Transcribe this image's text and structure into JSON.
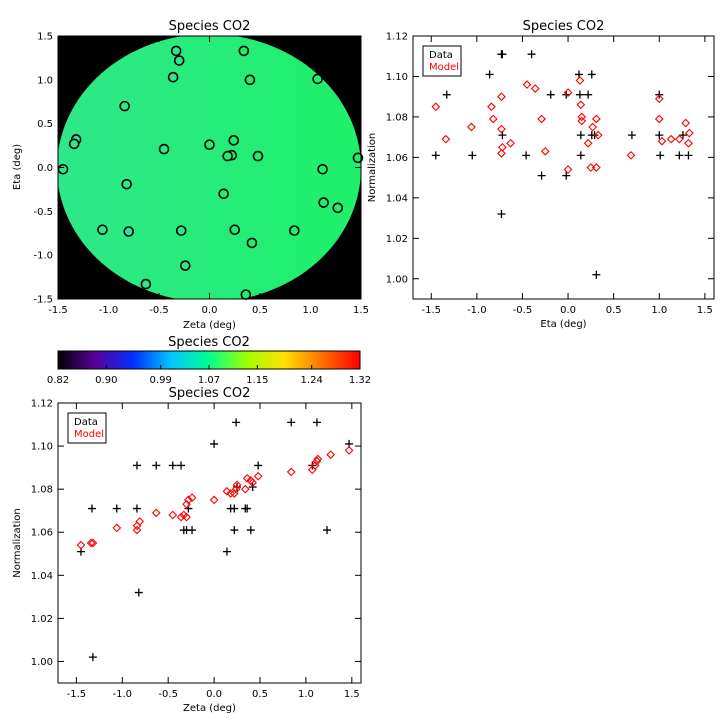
{
  "map": {
    "title": "Species CO2",
    "xlabel": "Zeta (deg)",
    "ylabel": "Eta (deg)",
    "xlim": [
      -1.5,
      1.5
    ],
    "ylim": [
      -1.5,
      1.5
    ],
    "x_ticks": [
      "-1.5",
      "-1.0",
      "-0.5",
      "0.0",
      "0.5",
      "1.0",
      "1.5"
    ],
    "y_ticks": [
      "-1.5",
      "-1.0",
      "-0.5",
      "0.0",
      "0.5",
      "1.0",
      "1.5"
    ],
    "background_color": "#000000",
    "disk_color_left": "#2ee88a",
    "disk_color_right": "#1ef06a",
    "points": [
      {
        "x": 0.34,
        "y": 1.33,
        "c": "#1ef06a"
      },
      {
        "x": -0.33,
        "y": 1.33,
        "c": "#2ee88a"
      },
      {
        "x": -0.3,
        "y": 1.22,
        "c": "#2ee88a"
      },
      {
        "x": -0.36,
        "y": 1.03,
        "c": "#2ee88a"
      },
      {
        "x": 0.4,
        "y": 1.0,
        "c": "#1ef06a"
      },
      {
        "x": 1.07,
        "y": 1.01,
        "c": "#1ef06a"
      },
      {
        "x": -0.84,
        "y": 0.7,
        "c": "#2ee88a"
      },
      {
        "x": -1.32,
        "y": 0.32,
        "c": "#2ee0a8"
      },
      {
        "x": -1.34,
        "y": 0.27,
        "c": "#2ee88a"
      },
      {
        "x": 0.24,
        "y": 0.31,
        "c": "#1ef06a"
      },
      {
        "x": 0.0,
        "y": 0.26,
        "c": "#1ef06a"
      },
      {
        "x": -0.45,
        "y": 0.21,
        "c": "#2ee88a"
      },
      {
        "x": 0.22,
        "y": 0.14,
        "c": "#1ef06a"
      },
      {
        "x": 0.18,
        "y": 0.13,
        "c": "#1ef06a"
      },
      {
        "x": 0.48,
        "y": 0.13,
        "c": "#1ef06a"
      },
      {
        "x": 1.47,
        "y": 0.11,
        "c": "#1ef06a"
      },
      {
        "x": -1.45,
        "y": -0.02,
        "c": "#2ee88a"
      },
      {
        "x": 1.12,
        "y": -0.02,
        "c": "#1ef06a"
      },
      {
        "x": -0.82,
        "y": -0.19,
        "c": "#2ee88a"
      },
      {
        "x": 0.14,
        "y": -0.3,
        "c": "#1ef06a"
      },
      {
        "x": 1.13,
        "y": -0.4,
        "c": "#1ef06a"
      },
      {
        "x": 1.27,
        "y": -0.46,
        "c": "#1ef06a"
      },
      {
        "x": -1.06,
        "y": -0.71,
        "c": "#2ee88a"
      },
      {
        "x": -0.8,
        "y": -0.73,
        "c": "#2ee0a8"
      },
      {
        "x": -0.28,
        "y": -0.72,
        "c": "#2ee88a"
      },
      {
        "x": 0.25,
        "y": -0.71,
        "c": "#1ef06a"
      },
      {
        "x": 0.84,
        "y": -0.72,
        "c": "#1ef06a"
      },
      {
        "x": 0.42,
        "y": -0.86,
        "c": "#1ef06a"
      },
      {
        "x": -0.24,
        "y": -1.12,
        "c": "#2ee88a"
      },
      {
        "x": -0.63,
        "y": -1.33,
        "c": "#2ee88a"
      },
      {
        "x": 0.36,
        "y": -1.45,
        "c": "#1ef06a"
      }
    ]
  },
  "colorbar": {
    "title": "Species CO2",
    "min": 0.82,
    "max": 1.32,
    "tick_labels": [
      "0.82",
      "0.90",
      "0.99",
      "1.07",
      "1.15",
      "1.24",
      "1.32"
    ],
    "colors": [
      "#000000",
      "#5a00a0",
      "#0030ff",
      "#00c8ff",
      "#00ff90",
      "#a0ff00",
      "#ffe000",
      "#ff7000",
      "#ff0000"
    ]
  },
  "chart_data": [
    {
      "type": "scatter",
      "title": "Species CO2",
      "xlabel": "Eta (deg)",
      "ylabel": "Normalization",
      "xlim": [
        -1.7,
        1.6
      ],
      "ylim": [
        0.99,
        1.12
      ],
      "x_ticks": [
        "-1.5",
        "-1.0",
        "-0.5",
        "0.0",
        "0.5",
        "1.0",
        "1.5"
      ],
      "y_ticks": [
        "1.00",
        "1.02",
        "1.04",
        "1.06",
        "1.08",
        "1.10",
        "1.12"
      ],
      "legend": {
        "position": "top-left",
        "entries": [
          {
            "label": "Data",
            "color": "#000000"
          },
          {
            "label": "Model",
            "color": "#ff0000"
          }
        ]
      },
      "series": [
        {
          "name": "Data",
          "marker": "plus",
          "color": "#000000",
          "points": [
            [
              -1.45,
              1.061
            ],
            [
              -1.33,
              1.091
            ],
            [
              -1.05,
              1.061
            ],
            [
              -0.86,
              1.101
            ],
            [
              -0.73,
              1.111
            ],
            [
              -0.72,
              1.111
            ],
            [
              -0.72,
              1.071
            ],
            [
              -0.73,
              1.032
            ],
            [
              -0.46,
              1.061
            ],
            [
              -0.4,
              1.111
            ],
            [
              -0.29,
              1.051
            ],
            [
              -0.19,
              1.091
            ],
            [
              -0.02,
              1.091
            ],
            [
              -0.02,
              1.051
            ],
            [
              0.12,
              1.101
            ],
            [
              0.14,
              1.071
            ],
            [
              0.13,
              1.091
            ],
            [
              0.14,
              1.061
            ],
            [
              0.22,
              1.091
            ],
            [
              0.26,
              1.101
            ],
            [
              0.26,
              1.071
            ],
            [
              0.29,
              1.071
            ],
            [
              0.31,
              1.002
            ],
            [
              0.7,
              1.071
            ],
            [
              1.0,
              1.091
            ],
            [
              1.01,
              1.061
            ],
            [
              1.0,
              1.071
            ],
            [
              1.22,
              1.061
            ],
            [
              1.26,
              1.071
            ],
            [
              1.32,
              1.061
            ]
          ]
        },
        {
          "name": "Model",
          "marker": "diamond",
          "color": "#ff0000",
          "points": [
            [
              -1.45,
              1.085
            ],
            [
              -1.34,
              1.069
            ],
            [
              -1.06,
              1.075
            ],
            [
              -0.84,
              1.085
            ],
            [
              -0.82,
              1.079
            ],
            [
              -0.73,
              1.09
            ],
            [
              -0.73,
              1.074
            ],
            [
              -0.72,
              1.065
            ],
            [
              -0.73,
              1.062
            ],
            [
              -0.63,
              1.067
            ],
            [
              -0.45,
              1.096
            ],
            [
              -0.36,
              1.094
            ],
            [
              -0.29,
              1.079
            ],
            [
              -0.25,
              1.063
            ],
            [
              0.0,
              1.092
            ],
            [
              0.0,
              1.054
            ],
            [
              0.13,
              1.098
            ],
            [
              0.14,
              1.086
            ],
            [
              0.15,
              1.08
            ],
            [
              0.15,
              1.078
            ],
            [
              0.22,
              1.067
            ],
            [
              0.25,
              1.055
            ],
            [
              0.27,
              1.075
            ],
            [
              0.31,
              1.079
            ],
            [
              0.31,
              1.055
            ],
            [
              0.33,
              1.071
            ],
            [
              0.69,
              1.061
            ],
            [
              1.0,
              1.089
            ],
            [
              1.0,
              1.079
            ],
            [
              1.03,
              1.068
            ],
            [
              1.13,
              1.069
            ],
            [
              1.22,
              1.069
            ],
            [
              1.29,
              1.077
            ],
            [
              1.32,
              1.067
            ],
            [
              1.33,
              1.072
            ]
          ]
        }
      ]
    },
    {
      "type": "scatter",
      "title": "Species CO2",
      "xlabel": "Zeta (deg)",
      "ylabel": "Normalization",
      "xlim": [
        -1.7,
        1.6
      ],
      "ylim": [
        0.99,
        1.12
      ],
      "x_ticks": [
        "-1.5",
        "-1.0",
        "-0.5",
        "0.0",
        "0.5",
        "1.0",
        "1.5"
      ],
      "y_ticks": [
        "1.00",
        "1.02",
        "1.04",
        "1.06",
        "1.08",
        "1.10",
        "1.12"
      ],
      "legend": {
        "position": "top-left",
        "entries": [
          {
            "label": "Data",
            "color": "#000000"
          },
          {
            "label": "Model",
            "color": "#ff0000"
          }
        ]
      },
      "series": [
        {
          "name": "Data",
          "marker": "plus",
          "color": "#000000",
          "points": [
            [
              -1.45,
              1.051
            ],
            [
              -1.33,
              1.071
            ],
            [
              -1.32,
              1.002
            ],
            [
              -1.06,
              1.071
            ],
            [
              -0.84,
              1.091
            ],
            [
              -0.84,
              1.071
            ],
            [
              -0.82,
              1.032
            ],
            [
              -0.63,
              1.091
            ],
            [
              -0.45,
              1.091
            ],
            [
              -0.36,
              1.091
            ],
            [
              -0.33,
              1.061
            ],
            [
              -0.3,
              1.061
            ],
            [
              -0.28,
              1.071
            ],
            [
              -0.24,
              1.061
            ],
            [
              0.0,
              1.101
            ],
            [
              0.14,
              1.051
            ],
            [
              0.18,
              1.071
            ],
            [
              0.22,
              1.071
            ],
            [
              0.22,
              1.061
            ],
            [
              0.24,
              1.111
            ],
            [
              0.25,
              1.081
            ],
            [
              0.34,
              1.071
            ],
            [
              0.36,
              1.071
            ],
            [
              0.4,
              1.061
            ],
            [
              0.42,
              1.081
            ],
            [
              0.48,
              1.091
            ],
            [
              0.84,
              1.111
            ],
            [
              1.07,
              1.091
            ],
            [
              1.12,
              1.111
            ],
            [
              1.23,
              1.061
            ],
            [
              1.47,
              1.101
            ]
          ]
        },
        {
          "name": "Model",
          "marker": "diamond",
          "color": "#ff0000",
          "points": [
            [
              -1.45,
              1.054
            ],
            [
              -1.34,
              1.055
            ],
            [
              -1.32,
              1.055
            ],
            [
              -1.06,
              1.062
            ],
            [
              -0.84,
              1.061
            ],
            [
              -0.84,
              1.063
            ],
            [
              -0.81,
              1.065
            ],
            [
              -0.63,
              1.069
            ],
            [
              -0.45,
              1.068
            ],
            [
              -0.36,
              1.067
            ],
            [
              -0.33,
              1.068
            ],
            [
              -0.3,
              1.067
            ],
            [
              -0.3,
              1.073
            ],
            [
              -0.28,
              1.075
            ],
            [
              -0.24,
              1.076
            ],
            [
              0.0,
              1.075
            ],
            [
              0.14,
              1.079
            ],
            [
              0.18,
              1.078
            ],
            [
              0.22,
              1.078
            ],
            [
              0.24,
              1.08
            ],
            [
              0.25,
              1.082
            ],
            [
              0.34,
              1.08
            ],
            [
              0.36,
              1.085
            ],
            [
              0.4,
              1.084
            ],
            [
              0.42,
              1.083
            ],
            [
              0.48,
              1.086
            ],
            [
              0.84,
              1.088
            ],
            [
              1.07,
              1.089
            ],
            [
              1.1,
              1.091
            ],
            [
              1.12,
              1.093
            ],
            [
              1.13,
              1.094
            ],
            [
              1.27,
              1.096
            ],
            [
              1.47,
              1.098
            ]
          ]
        }
      ]
    }
  ]
}
